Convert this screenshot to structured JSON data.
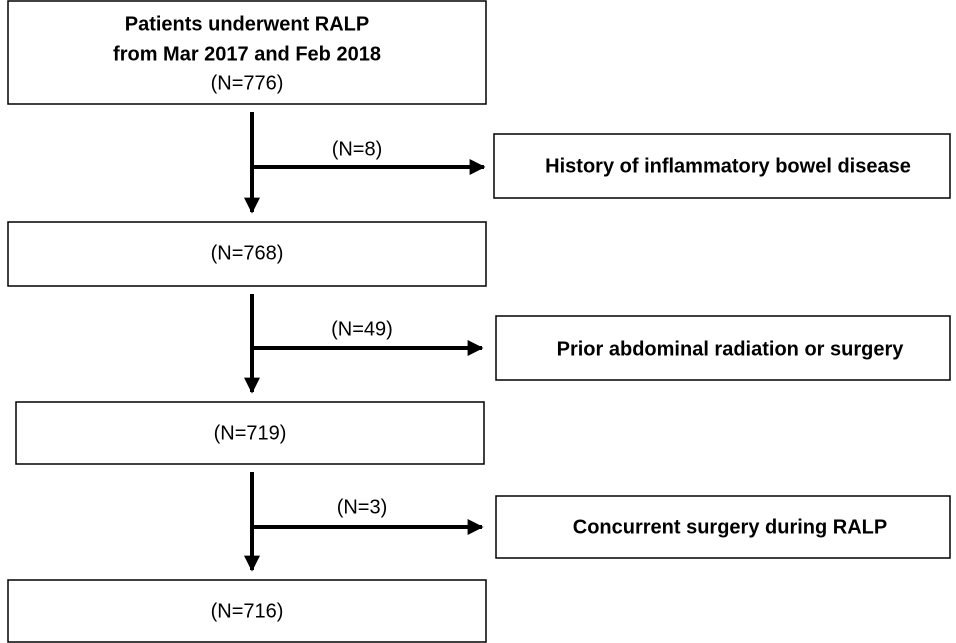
{
  "nodes": [
    {
      "lines": [
        "Patients underwent RALP",
        "from Mar 2017 and Feb 2018"
      ],
      "count": "(N=776)"
    },
    {
      "count": "(N=768)"
    },
    {
      "count": "(N=719)"
    },
    {
      "count": "(N=716)"
    }
  ],
  "exclusions": [
    {
      "count": "(N=8)",
      "reason": "History of inflammatory bowel disease"
    },
    {
      "count": "(N=49)",
      "reason": "Prior abdominal radiation or surgery"
    },
    {
      "count": "(N=3)",
      "reason": "Concurrent surgery during RALP"
    }
  ]
}
